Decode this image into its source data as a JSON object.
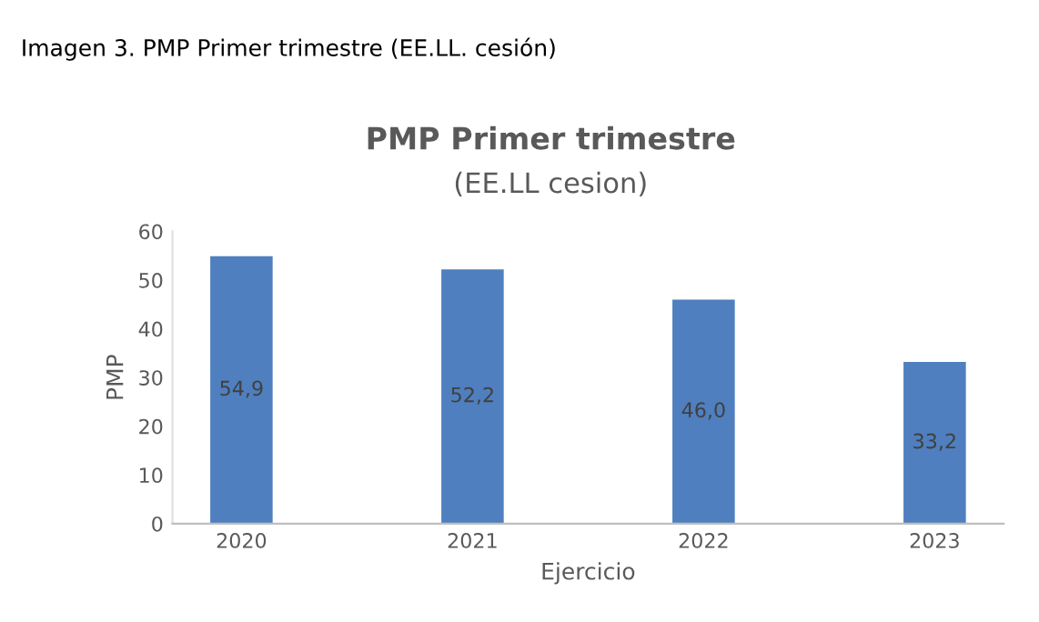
{
  "chart_data": {
    "type": "bar",
    "title": "PMP Primer trimestre",
    "subtitle": "(EE.LL cesion)",
    "xlabel": "Ejercicio",
    "ylabel": "PMP",
    "annotations": [
      "Imagen 3. PMP Primer trimestre (EE.LL. cesión)"
    ],
    "categories": [
      "2020",
      "2021",
      "2022",
      "2023"
    ],
    "values": [
      54.9,
      52.2,
      46.0,
      33.2
    ],
    "value_labels": [
      "54,9",
      "52,2",
      "46,0",
      "33,2"
    ],
    "color": "#4f7fbf",
    "ylim": [
      0,
      60
    ],
    "yticks": [
      0,
      10,
      20,
      30,
      40,
      50,
      60
    ],
    "grid": false,
    "legend": false
  }
}
